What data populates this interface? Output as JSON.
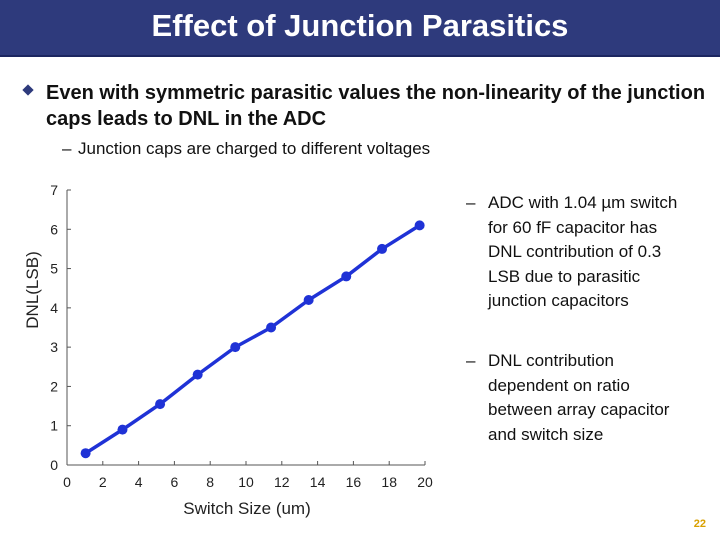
{
  "header": {
    "title": "Effect of Junction Parasitics"
  },
  "bullets": {
    "main": "Even with symmetric parasitic values the non-linearity of the junction caps leads to DNL in the ADC",
    "sub_dash": "–",
    "sub": "Junction caps are charged to different voltages"
  },
  "notes": [
    {
      "dash": "–",
      "text": "ADC with 1.04 µm switch for 60 fF capacitor has DNL contribution of 0.3 LSB due to parasitic junction capacitors"
    },
    {
      "dash": "–",
      "text": "DNL contribution dependent on ratio between array capacitor and switch size"
    }
  ],
  "page_number": "22",
  "colors": {
    "title_bar": "#2e3a7c",
    "series": "#1f32d6",
    "page_number": "#d9a000"
  },
  "chart_data": {
    "type": "line",
    "xlabel": "Switch Size (um)",
    "ylabel": "DNL(LSB)",
    "xlim": [
      0,
      20
    ],
    "ylim": [
      0,
      7
    ],
    "xticks": [
      "0",
      "2",
      "4",
      "6",
      "8",
      "10",
      "12",
      "14",
      "16",
      "18",
      "20"
    ],
    "yticks": [
      "0",
      "1",
      "2",
      "3",
      "4",
      "5",
      "6",
      "7"
    ],
    "grid": false,
    "legend": "none",
    "series": [
      {
        "x": [
          1.04,
          3.1,
          5.2,
          7.3,
          9.4,
          11.4,
          13.5,
          15.6,
          17.6,
          19.7
        ],
        "y": [
          0.3,
          0.9,
          1.55,
          2.3,
          3.0,
          3.5,
          4.2,
          4.8,
          5.5,
          6.1
        ]
      }
    ]
  }
}
